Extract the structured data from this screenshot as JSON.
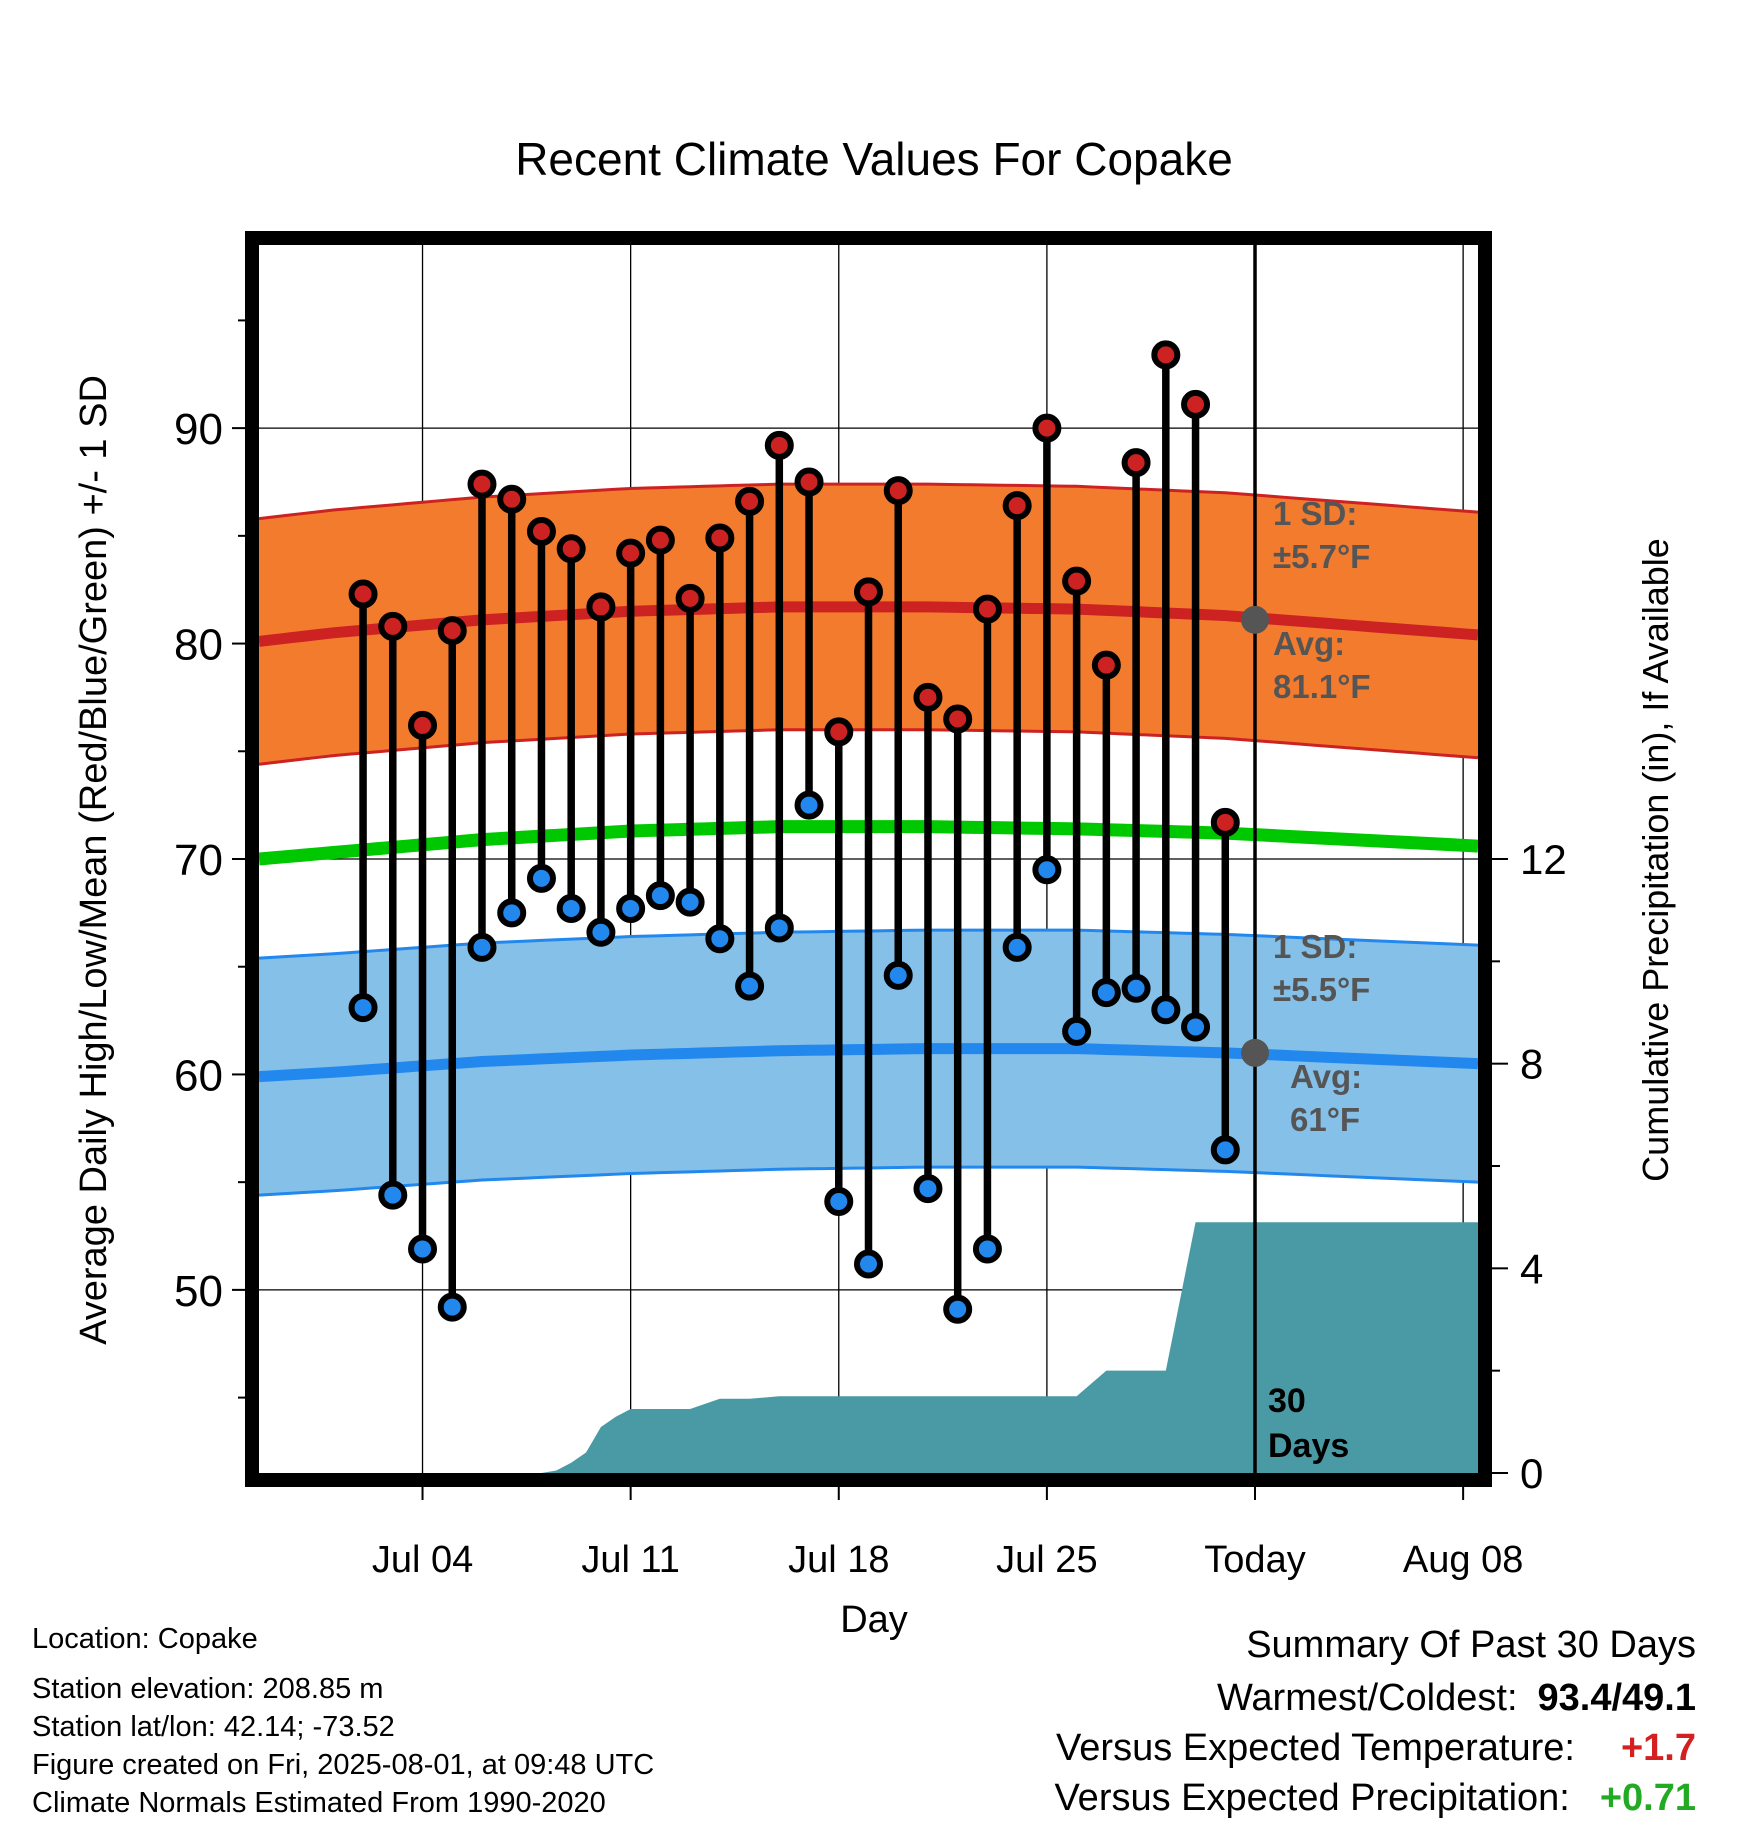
{
  "chart_data": {
    "type": "line",
    "title": "Recent Climate Values For Copake",
    "xlabel": "Day",
    "ylabel": "Average Daily High/Low/Mean (Red/Blue/Green) +/- 1 SD",
    "y2label": "Cumulative Precipitation (in), If Available",
    "xlim_days": [
      -2.5,
      38.5
    ],
    "ylim": [
      41.5,
      98.5
    ],
    "y2lim": [
      0,
      24
    ],
    "x_ticks": [
      {
        "day": 3,
        "label": "Jul 04"
      },
      {
        "day": 10,
        "label": "Jul 11"
      },
      {
        "day": 17,
        "label": "Jul 18"
      },
      {
        "day": 24,
        "label": "Jul 25"
      },
      {
        "day": 31,
        "label": "Today"
      },
      {
        "day": 38,
        "label": "Aug 08"
      }
    ],
    "y_ticks": [
      50,
      60,
      70,
      80,
      90
    ],
    "y2_ticks": [
      0,
      4,
      8,
      12
    ],
    "grid": true,
    "today_day": 31,
    "days": [
      1,
      2,
      3,
      4,
      5,
      6,
      7,
      8,
      9,
      10,
      11,
      12,
      13,
      14,
      15,
      16,
      17,
      18,
      19,
      20,
      21,
      22,
      23,
      24,
      25,
      26,
      27,
      28,
      29,
      30
    ],
    "series": [
      {
        "name": "High",
        "color": "#cc2222",
        "values": [
          82.3,
          80.8,
          76.2,
          80.6,
          87.4,
          86.7,
          85.2,
          84.4,
          81.7,
          84.2,
          84.8,
          82.1,
          84.9,
          86.6,
          89.2,
          87.5,
          75.9,
          82.4,
          87.1,
          77.5,
          76.5,
          81.6,
          86.4,
          90.0,
          82.9,
          79.0,
          88.4,
          93.4,
          91.1,
          71.7
        ]
      },
      {
        "name": "Low",
        "color": "#2288ee",
        "values": [
          63.1,
          54.4,
          51.9,
          49.2,
          65.9,
          67.5,
          69.1,
          67.7,
          66.6,
          67.7,
          68.3,
          68.0,
          66.3,
          64.1,
          66.8,
          72.5,
          54.1,
          51.2,
          64.6,
          54.7,
          49.1,
          51.9,
          65.9,
          69.5,
          62.0,
          63.8,
          64.0,
          63.0,
          62.2,
          56.5
        ]
      }
    ],
    "normal_high": {
      "color": "#cc2222",
      "band_color": "#f37b2e",
      "days": [
        -2.5,
        0,
        5,
        10,
        15,
        20,
        25,
        30,
        38.5
      ],
      "mean": [
        80.1,
        80.5,
        81.1,
        81.5,
        81.7,
        81.7,
        81.6,
        81.3,
        80.4
      ],
      "sd": 5.7
    },
    "normal_low": {
      "color": "#2288ee",
      "band_color": "#85c0e8",
      "days": [
        -2.5,
        0,
        5,
        10,
        15,
        20,
        25,
        30,
        38.5
      ],
      "mean": [
        59.9,
        60.1,
        60.6,
        60.9,
        61.1,
        61.2,
        61.2,
        61.0,
        60.5
      ],
      "sd": 5.5
    },
    "normal_mean": {
      "color": "#00c800",
      "days": [
        -2.5,
        0,
        5,
        10,
        15,
        20,
        25,
        30,
        38.5
      ],
      "values": [
        70.0,
        70.3,
        70.9,
        71.3,
        71.5,
        71.5,
        71.4,
        71.2,
        70.6
      ]
    },
    "precip": {
      "color": "#4a9aa5",
      "days": [
        -2.5,
        4,
        5,
        6,
        6.5,
        7,
        7.5,
        8,
        8.5,
        9,
        9.5,
        10,
        11,
        12,
        13,
        14,
        15,
        16,
        17,
        18,
        19,
        20,
        21,
        22,
        23,
        24,
        25,
        26,
        27,
        28,
        29,
        30,
        31,
        38.5
      ],
      "values": [
        0,
        0,
        0,
        0,
        0,
        0,
        0.05,
        0.2,
        0.4,
        0.9,
        1.1,
        1.25,
        1.25,
        1.25,
        1.45,
        1.45,
        1.5,
        1.5,
        1.5,
        1.5,
        1.5,
        1.5,
        1.5,
        1.5,
        1.5,
        1.5,
        1.5,
        2.0,
        2.0,
        2.0,
        4.9,
        4.9,
        4.9,
        4.9
      ]
    },
    "annotations": {
      "high_sd_label": "1 SD:",
      "high_sd_value": "±5.7°F",
      "high_avg_label": "Avg:",
      "high_avg_value": "81.1°F",
      "high_avg_marker": 81.1,
      "low_sd_label": "1 SD:",
      "low_sd_value": "±5.5°F",
      "low_avg_label": "Avg:",
      "low_avg_value": "61°F",
      "low_avg_marker": 61,
      "days_label_1": "30",
      "days_label_2": "Days"
    }
  },
  "metadata": {
    "location": "Location: Copake",
    "elevation": "Station elevation: 208.85 m",
    "latlon": "Station lat/lon: 42.14; -73.52",
    "created": "Figure created on Fri, 2025-08-01, at 09:48 UTC",
    "normals": "Climate Normals Estimated From 1990-2020"
  },
  "summary": {
    "heading": "Summary Of Past 30 Days",
    "warm_cold_label": "Warmest/Coldest:",
    "warm_cold_value": "93.4/49.1",
    "temp_label": "Versus Expected Temperature:",
    "temp_value": "+1.7",
    "temp_color": "#d42020",
    "precip_label": "Versus Expected Precipitation:",
    "precip_value": "+0.71",
    "precip_color": "#22aa22"
  }
}
